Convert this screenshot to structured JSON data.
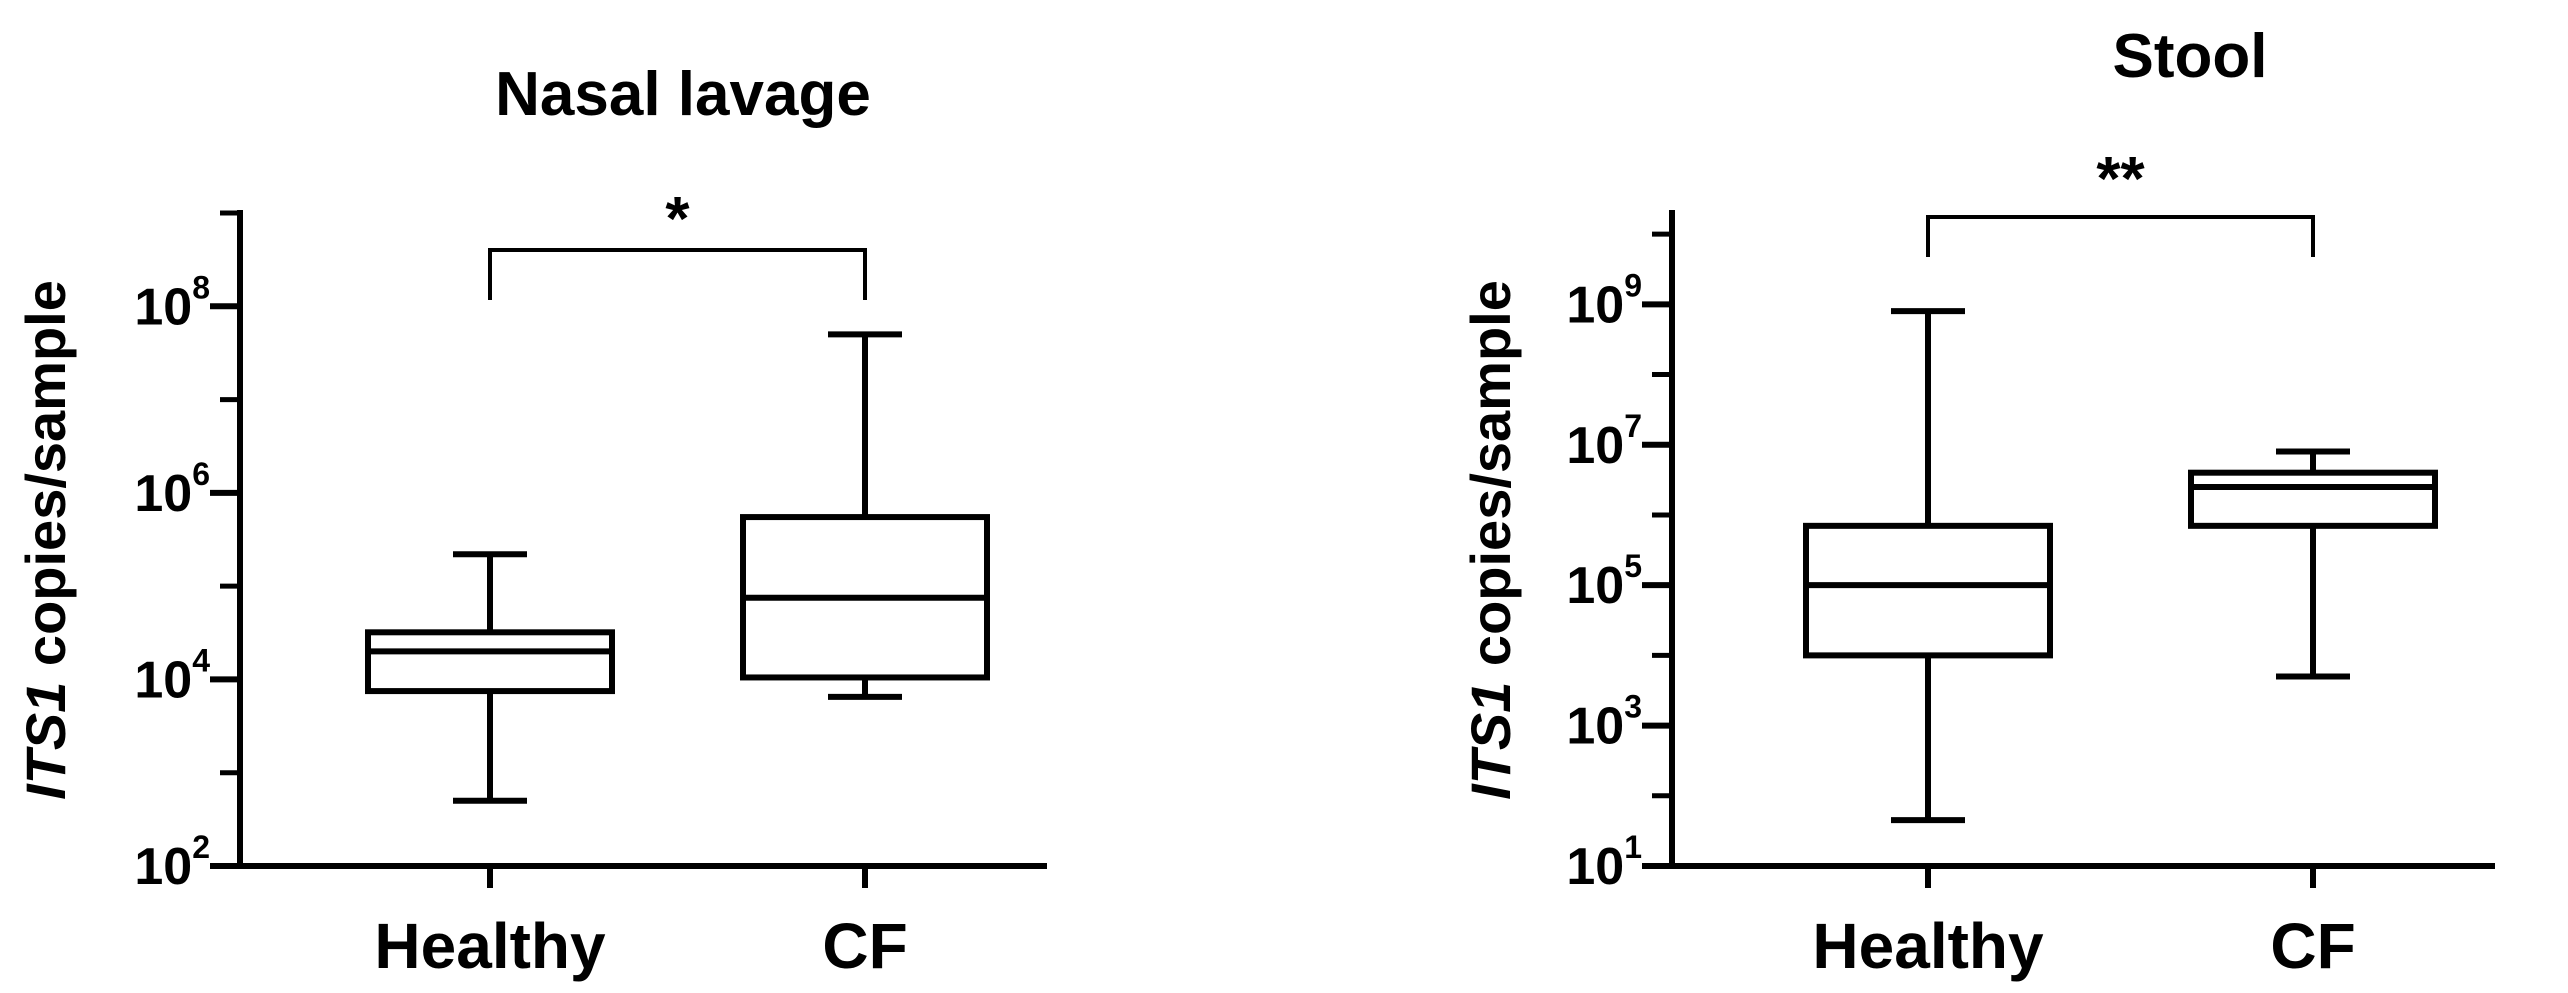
{
  "chart_data": [
    {
      "type": "box",
      "title": "Nasal lavage",
      "ylabel_italic": "ITS1",
      "ylabel_rest": " copies/sample",
      "yscale": "log",
      "ylim": [
        100,
        1000000000
      ],
      "yticks": [
        {
          "base": "10",
          "exp": "2",
          "value": 100
        },
        {
          "base": "10",
          "exp": "4",
          "value": 10000
        },
        {
          "base": "10",
          "exp": "6",
          "value": 1000000
        },
        {
          "base": "10",
          "exp": "8",
          "value": 100000000
        }
      ],
      "categories": [
        "Healthy",
        "CF"
      ],
      "boxes": [
        {
          "category": "Healthy",
          "min": 500,
          "q1": 7500,
          "median": 20000,
          "q3": 32000,
          "max": 220000
        },
        {
          "category": "CF",
          "min": 6500,
          "q1": 10500,
          "median": 75000,
          "q3": 550000,
          "max": 50000000
        }
      ],
      "significance": {
        "from": "Healthy",
        "to": "CF",
        "label": "*"
      }
    },
    {
      "type": "box",
      "title": "Stool",
      "ylabel_italic": "ITS1",
      "ylabel_rest": " copies/sample",
      "yscale": "log",
      "ylim": [
        10,
        20000000000
      ],
      "yticks": [
        {
          "base": "10",
          "exp": "1",
          "value": 10
        },
        {
          "base": "10",
          "exp": "3",
          "value": 1000
        },
        {
          "base": "10",
          "exp": "5",
          "value": 100000
        },
        {
          "base": "10",
          "exp": "7",
          "value": 10000000
        },
        {
          "base": "10",
          "exp": "9",
          "value": 1000000000
        }
      ],
      "categories": [
        "Healthy",
        "CF"
      ],
      "boxes": [
        {
          "category": "Healthy",
          "min": 45,
          "q1": 10000,
          "median": 100000,
          "q3": 700000,
          "max": 800000000
        },
        {
          "category": "CF",
          "min": 5000,
          "q1": 700000,
          "median": 2500000,
          "q3": 4000000,
          "max": 8000000
        }
      ],
      "significance": {
        "from": "Healthy",
        "to": "CF",
        "label": "**"
      }
    }
  ]
}
